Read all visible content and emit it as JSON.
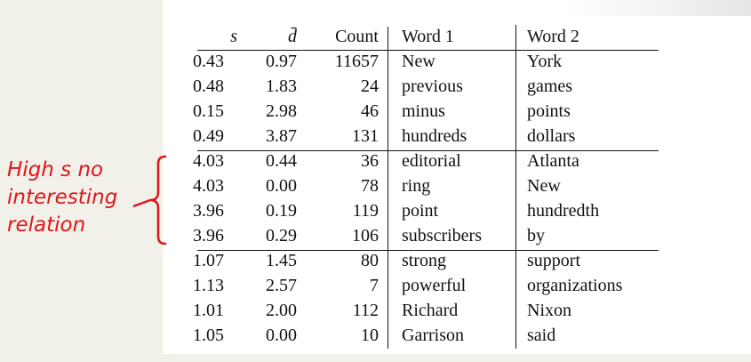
{
  "annotation": {
    "lines": [
      "High s no",
      "interesting",
      "relation"
    ],
    "color": "#e0161b"
  },
  "table": {
    "headers": [
      "s",
      "d̄",
      "Count",
      "Word 1",
      "Word 2"
    ],
    "rows": [
      [
        "0.43",
        "0.97",
        "11657",
        "New",
        "York"
      ],
      [
        "0.48",
        "1.83",
        "24",
        "previous",
        "games"
      ],
      [
        "0.15",
        "2.98",
        "46",
        "minus",
        "points"
      ],
      [
        "0.49",
        "3.87",
        "131",
        "hundreds",
        "dollars"
      ],
      [
        "4.03",
        "0.44",
        "36",
        "editorial",
        "Atlanta"
      ],
      [
        "4.03",
        "0.00",
        "78",
        "ring",
        "New"
      ],
      [
        "3.96",
        "0.19",
        "119",
        "point",
        "hundredth"
      ],
      [
        "3.96",
        "0.29",
        "106",
        "subscribers",
        "by"
      ],
      [
        "1.07",
        "1.45",
        "80",
        "strong",
        "support"
      ],
      [
        "1.13",
        "2.57",
        "7",
        "powerful",
        "organizations"
      ],
      [
        "1.01",
        "2.00",
        "112",
        "Richard",
        "Nixon"
      ],
      [
        "1.05",
        "0.00",
        "10",
        "Garrison",
        "said"
      ]
    ]
  }
}
